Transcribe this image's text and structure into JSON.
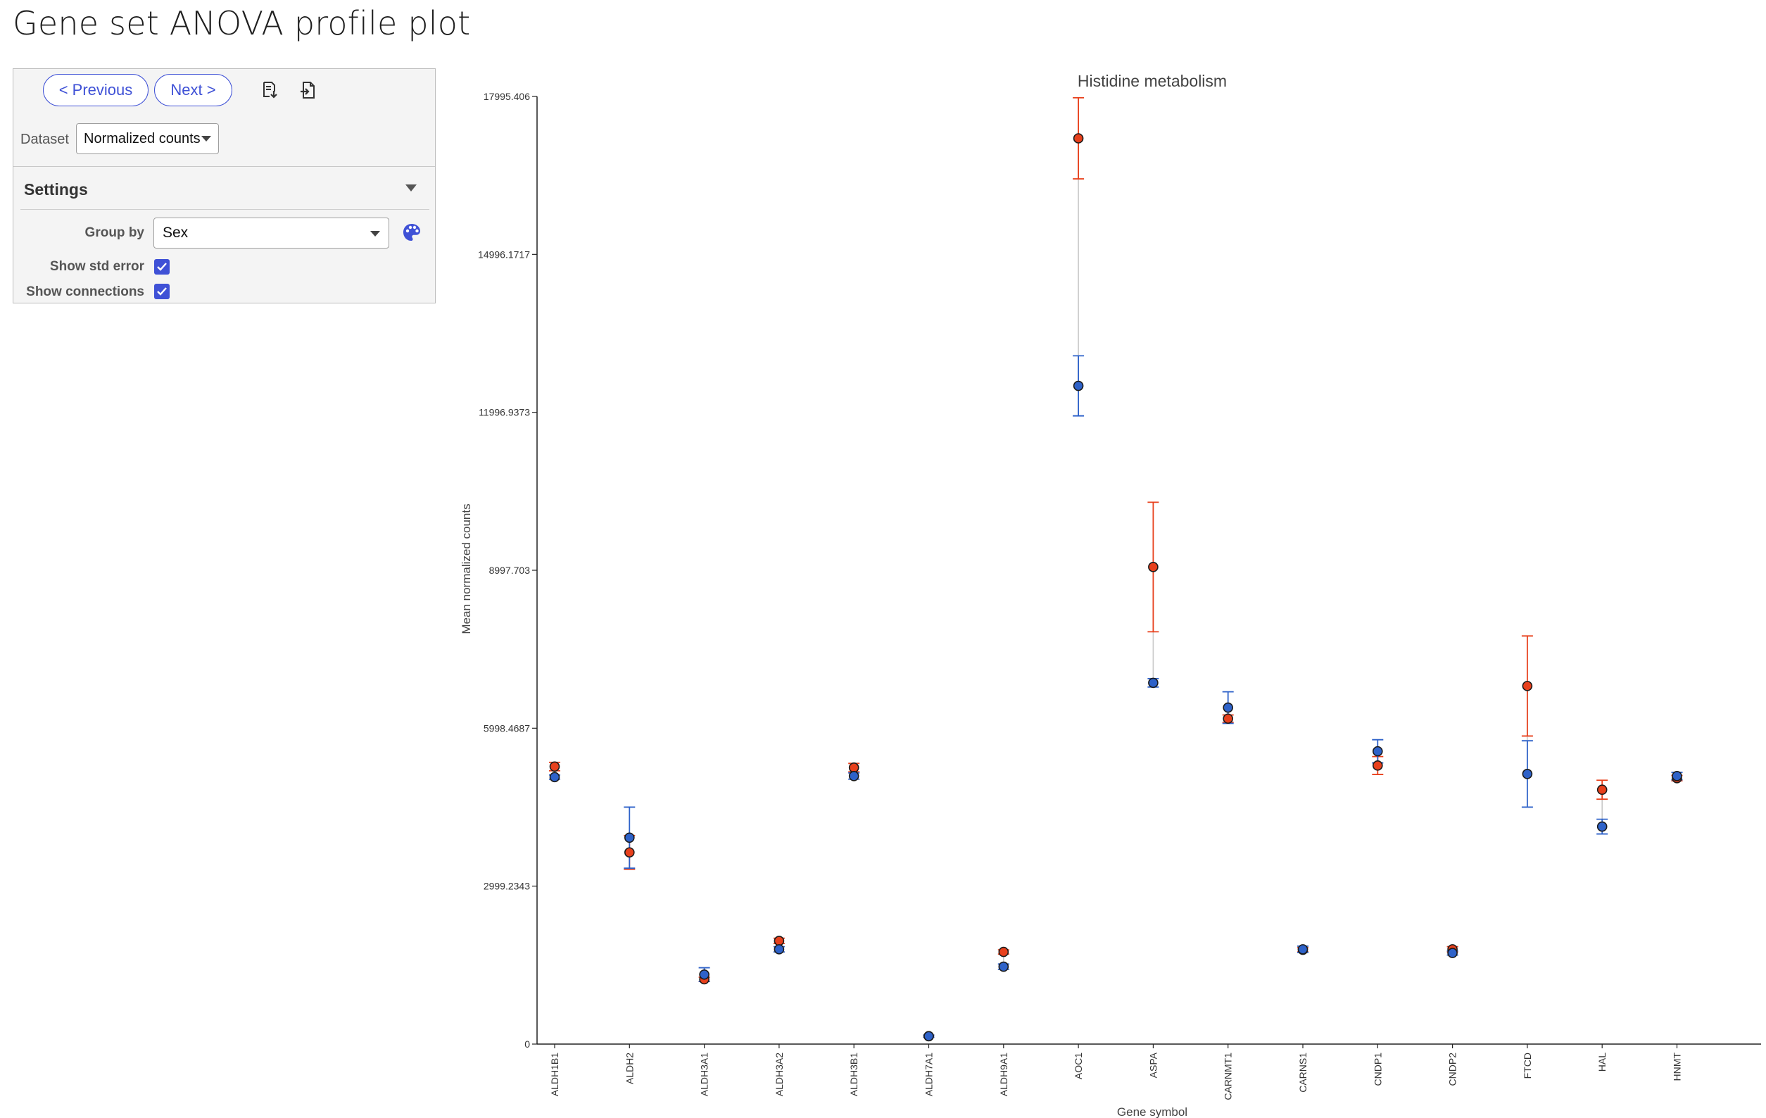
{
  "page": {
    "title": "Gene set ANOVA profile plot"
  },
  "controls": {
    "previous_label": "< Previous",
    "next_label": "Next >",
    "dataset_label": "Dataset",
    "dataset_value": "Normalized counts",
    "settings_title": "Settings",
    "group_by_label": "Group by",
    "group_by_value": "Sex",
    "show_std_error_label": "Show std error",
    "show_std_error": true,
    "show_connections_label": "Show connections",
    "show_connections": true,
    "accent_color": "#3f51d6"
  },
  "icons": {
    "export": "export-data-icon",
    "export_image": "export-image-icon",
    "palette": "palette-icon",
    "settings_toggle": "chevron-down-icon"
  },
  "chart_data": {
    "type": "scatter",
    "title": "Histidine metabolism",
    "xlabel": "Gene symbol",
    "ylabel": "Mean normalized counts",
    "ylim": [
      0,
      17995.406
    ],
    "ytick_values": [
      0,
      2999.2343,
      5998.4687,
      8997.703,
      11996.9373,
      14996.1717,
      17995.406
    ],
    "ytick_labels": [
      "0",
      "2999.2343",
      "5998.4687",
      "8997.703",
      "11996.9373",
      "14996.1717",
      "17995.406"
    ],
    "categories": [
      "ALDH1B1",
      "ALDH2",
      "ALDH3A1",
      "ALDH3A2",
      "ALDH3B1",
      "ALDH7A1",
      "ALDH9A1",
      "AOC1",
      "ASPA",
      "CARNMT1",
      "CARNS1",
      "CNDP1",
      "CNDP2",
      "FTCD",
      "HAL",
      "HNMT"
    ],
    "grid": false,
    "legend": "none",
    "series": [
      {
        "color": "#e8401c",
        "values": [
          5270,
          3640,
          1230,
          1960,
          5250,
          150,
          1750,
          17200,
          9060,
          6180,
          1790,
          5290,
          1800,
          6800,
          4830,
          5050
        ],
        "errors": [
          80,
          320,
          40,
          50,
          80,
          20,
          40,
          770,
          1230,
          70,
          40,
          170,
          50,
          950,
          180,
          50
        ]
      },
      {
        "color": "#2e62c9",
        "values": [
          5070,
          3920,
          1320,
          1800,
          5090,
          150,
          1470,
          12500,
          6860,
          6390,
          1800,
          5560,
          1730,
          5130,
          4130,
          5090
        ],
        "errors": [
          40,
          580,
          130,
          50,
          60,
          20,
          50,
          570,
          80,
          300,
          60,
          220,
          40,
          630,
          140,
          70
        ]
      }
    ]
  }
}
